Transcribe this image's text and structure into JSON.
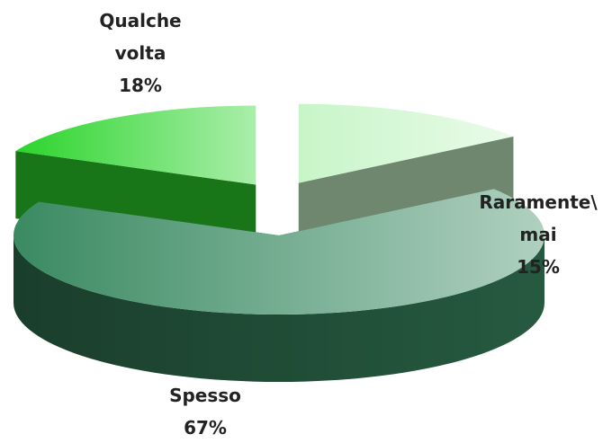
{
  "chart_data": {
    "type": "pie",
    "categories": [
      "Raramente\\mai",
      "Spesso",
      "Qualche volta"
    ],
    "values": [
      15,
      67,
      18
    ],
    "value_labels": [
      "15%",
      "67%",
      "18%"
    ],
    "colors": [
      "#c8f5c8",
      "#3a8a62",
      "#2bd42b"
    ]
  }
}
